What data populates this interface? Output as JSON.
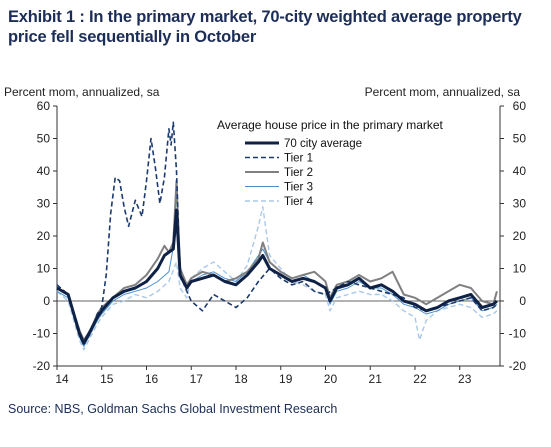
{
  "title": "Exhibit 1 : In the primary market, 70-city weighted average property price fell sequentially in October",
  "source": "Source: NBS, Goldman Sachs Global Investment Research",
  "chart_data": {
    "type": "line",
    "ylabel_left": "Percent mom, annualized, sa",
    "ylabel_right": "Percent mom, annualized, sa",
    "legend_title": "Average house price in the primary market",
    "legend_position": "top-center",
    "ylim": [
      -20,
      60
    ],
    "yticks": [
      -20,
      -10,
      0,
      10,
      20,
      30,
      40,
      50,
      60
    ],
    "xlim": [
      2014.0,
      2023.9
    ],
    "xticks": [
      "14",
      "15",
      "16",
      "17",
      "18",
      "19",
      "20",
      "21",
      "22",
      "23"
    ],
    "grid": false,
    "series": [
      {
        "name": "70 city average",
        "color": "#0f2245",
        "style": "solid",
        "x": [
          2014.0,
          2014.25,
          2014.5,
          2014.6,
          2014.75,
          2014.9,
          2015.0,
          2015.25,
          2015.5,
          2015.75,
          2016.0,
          2016.25,
          2016.4,
          2016.6,
          2016.67,
          2016.75,
          2016.9,
          2017.0,
          2017.25,
          2017.5,
          2017.75,
          2018.0,
          2018.25,
          2018.5,
          2018.6,
          2018.75,
          2019.0,
          2019.25,
          2019.5,
          2019.75,
          2020.0,
          2020.1,
          2020.25,
          2020.5,
          2020.75,
          2021.0,
          2021.25,
          2021.5,
          2021.75,
          2022.0,
          2022.25,
          2022.5,
          2022.75,
          2023.0,
          2023.25,
          2023.5,
          2023.75,
          2023.83
        ],
        "y": [
          4,
          2,
          -10,
          -13,
          -9,
          -5,
          -3,
          1,
          3,
          4,
          6,
          10,
          14,
          16,
          28,
          8,
          4,
          6,
          7,
          8,
          6,
          5,
          8,
          12,
          14,
          10,
          8,
          6,
          7,
          6,
          4,
          0,
          4,
          5,
          7,
          4,
          5,
          3,
          0,
          -1,
          -3,
          -2,
          0,
          1,
          2,
          -2,
          -1,
          0
        ]
      },
      {
        "name": "Tier 1",
        "color": "#1c3a6e",
        "style": "dashed",
        "x": [
          2014.0,
          2014.25,
          2014.5,
          2014.6,
          2014.75,
          2014.9,
          2015.0,
          2015.1,
          2015.2,
          2015.3,
          2015.4,
          2015.5,
          2015.6,
          2015.75,
          2015.9,
          2016.0,
          2016.1,
          2016.2,
          2016.3,
          2016.4,
          2016.5,
          2016.55,
          2016.6,
          2016.67,
          2016.75,
          2016.9,
          2017.0,
          2017.25,
          2017.5,
          2017.75,
          2018.0,
          2018.25,
          2018.5,
          2018.75,
          2019.0,
          2019.25,
          2019.5,
          2019.75,
          2020.0,
          2020.25,
          2020.5,
          2020.75,
          2021.0,
          2021.25,
          2021.5,
          2021.75,
          2022.0,
          2022.25,
          2022.5,
          2022.75,
          2023.0,
          2023.25,
          2023.5,
          2023.75,
          2023.83
        ],
        "y": [
          5,
          2,
          -9,
          -13,
          -10,
          -4,
          -2,
          8,
          27,
          38,
          37,
          29,
          23,
          31,
          26,
          37,
          50,
          41,
          30,
          38,
          53,
          48,
          55,
          40,
          8,
          3,
          0,
          -3,
          2,
          0,
          -2,
          1,
          6,
          10,
          7,
          5,
          6,
          3,
          2,
          4,
          6,
          5,
          4,
          3,
          2,
          1,
          -2,
          -3,
          -2,
          -1,
          0,
          1,
          -3,
          -2,
          -1
        ]
      },
      {
        "name": "Tier 2",
        "color": "#808080",
        "style": "solid",
        "x": [
          2014.0,
          2014.25,
          2014.5,
          2014.6,
          2014.75,
          2014.9,
          2015.0,
          2015.25,
          2015.5,
          2015.75,
          2016.0,
          2016.25,
          2016.4,
          2016.5,
          2016.6,
          2016.67,
          2016.75,
          2016.9,
          2017.0,
          2017.25,
          2017.5,
          2017.75,
          2018.0,
          2018.25,
          2018.5,
          2018.6,
          2018.75,
          2019.0,
          2019.25,
          2019.5,
          2019.75,
          2020.0,
          2020.1,
          2020.25,
          2020.5,
          2020.75,
          2021.0,
          2021.25,
          2021.5,
          2021.75,
          2022.0,
          2022.25,
          2022.5,
          2022.75,
          2023.0,
          2023.25,
          2023.5,
          2023.75,
          2023.83
        ],
        "y": [
          4,
          2,
          -9,
          -12,
          -9,
          -4,
          -2,
          1,
          4,
          5,
          8,
          13,
          17,
          15,
          18,
          37,
          10,
          5,
          7,
          9,
          8,
          6,
          7,
          9,
          13,
          18,
          12,
          9,
          7,
          8,
          9,
          6,
          1,
          5,
          6,
          8,
          6,
          7,
          9,
          2,
          1,
          -1,
          1,
          3,
          5,
          4,
          0,
          -1,
          3
        ]
      },
      {
        "name": "Tier 3",
        "color": "#4a90d0",
        "style": "solid",
        "x": [
          2014.0,
          2014.25,
          2014.5,
          2014.6,
          2014.75,
          2014.9,
          2015.0,
          2015.25,
          2015.5,
          2015.75,
          2016.0,
          2016.25,
          2016.5,
          2016.67,
          2016.75,
          2016.9,
          2017.0,
          2017.25,
          2017.5,
          2017.75,
          2018.0,
          2018.25,
          2018.5,
          2018.6,
          2018.75,
          2019.0,
          2019.25,
          2019.5,
          2019.75,
          2020.0,
          2020.1,
          2020.25,
          2020.5,
          2020.75,
          2021.0,
          2021.25,
          2021.5,
          2021.75,
          2022.0,
          2022.25,
          2022.5,
          2022.75,
          2023.0,
          2023.25,
          2023.5,
          2023.75,
          2023.83
        ],
        "y": [
          3,
          1,
          -11,
          -14,
          -10,
          -6,
          -4,
          0,
          2,
          3,
          4,
          6,
          9,
          22,
          7,
          4,
          6,
          8,
          9,
          7,
          6,
          9,
          14,
          16,
          12,
          9,
          7,
          8,
          6,
          4,
          -1,
          3,
          4,
          6,
          4,
          4,
          2,
          -1,
          -2,
          -4,
          -3,
          -1,
          0,
          1,
          -3,
          -2,
          -1
        ]
      },
      {
        "name": "Tier 4",
        "color": "#a9c8e8",
        "style": "dashed",
        "x": [
          2014.0,
          2014.25,
          2014.5,
          2014.6,
          2014.75,
          2014.9,
          2015.0,
          2015.25,
          2015.5,
          2015.75,
          2016.0,
          2016.25,
          2016.5,
          2016.67,
          2016.75,
          2016.9,
          2017.0,
          2017.25,
          2017.5,
          2017.75,
          2018.0,
          2018.25,
          2018.5,
          2018.6,
          2018.75,
          2019.0,
          2019.25,
          2019.5,
          2019.75,
          2020.0,
          2020.1,
          2020.25,
          2020.5,
          2020.75,
          2021.0,
          2021.25,
          2021.5,
          2021.75,
          2022.0,
          2022.1,
          2022.25,
          2022.5,
          2022.75,
          2023.0,
          2023.25,
          2023.5,
          2023.75,
          2023.83
        ],
        "y": [
          3,
          0,
          -12,
          -15,
          -11,
          -7,
          -5,
          -1,
          0,
          2,
          1,
          3,
          6,
          12,
          4,
          1,
          7,
          10,
          12,
          9,
          6,
          11,
          23,
          29,
          14,
          10,
          6,
          5,
          3,
          2,
          -3,
          1,
          2,
          3,
          2,
          2,
          0,
          -3,
          -5,
          -12,
          -6,
          -3,
          -2,
          -1,
          -2,
          -5,
          -4,
          -3
        ]
      }
    ]
  }
}
